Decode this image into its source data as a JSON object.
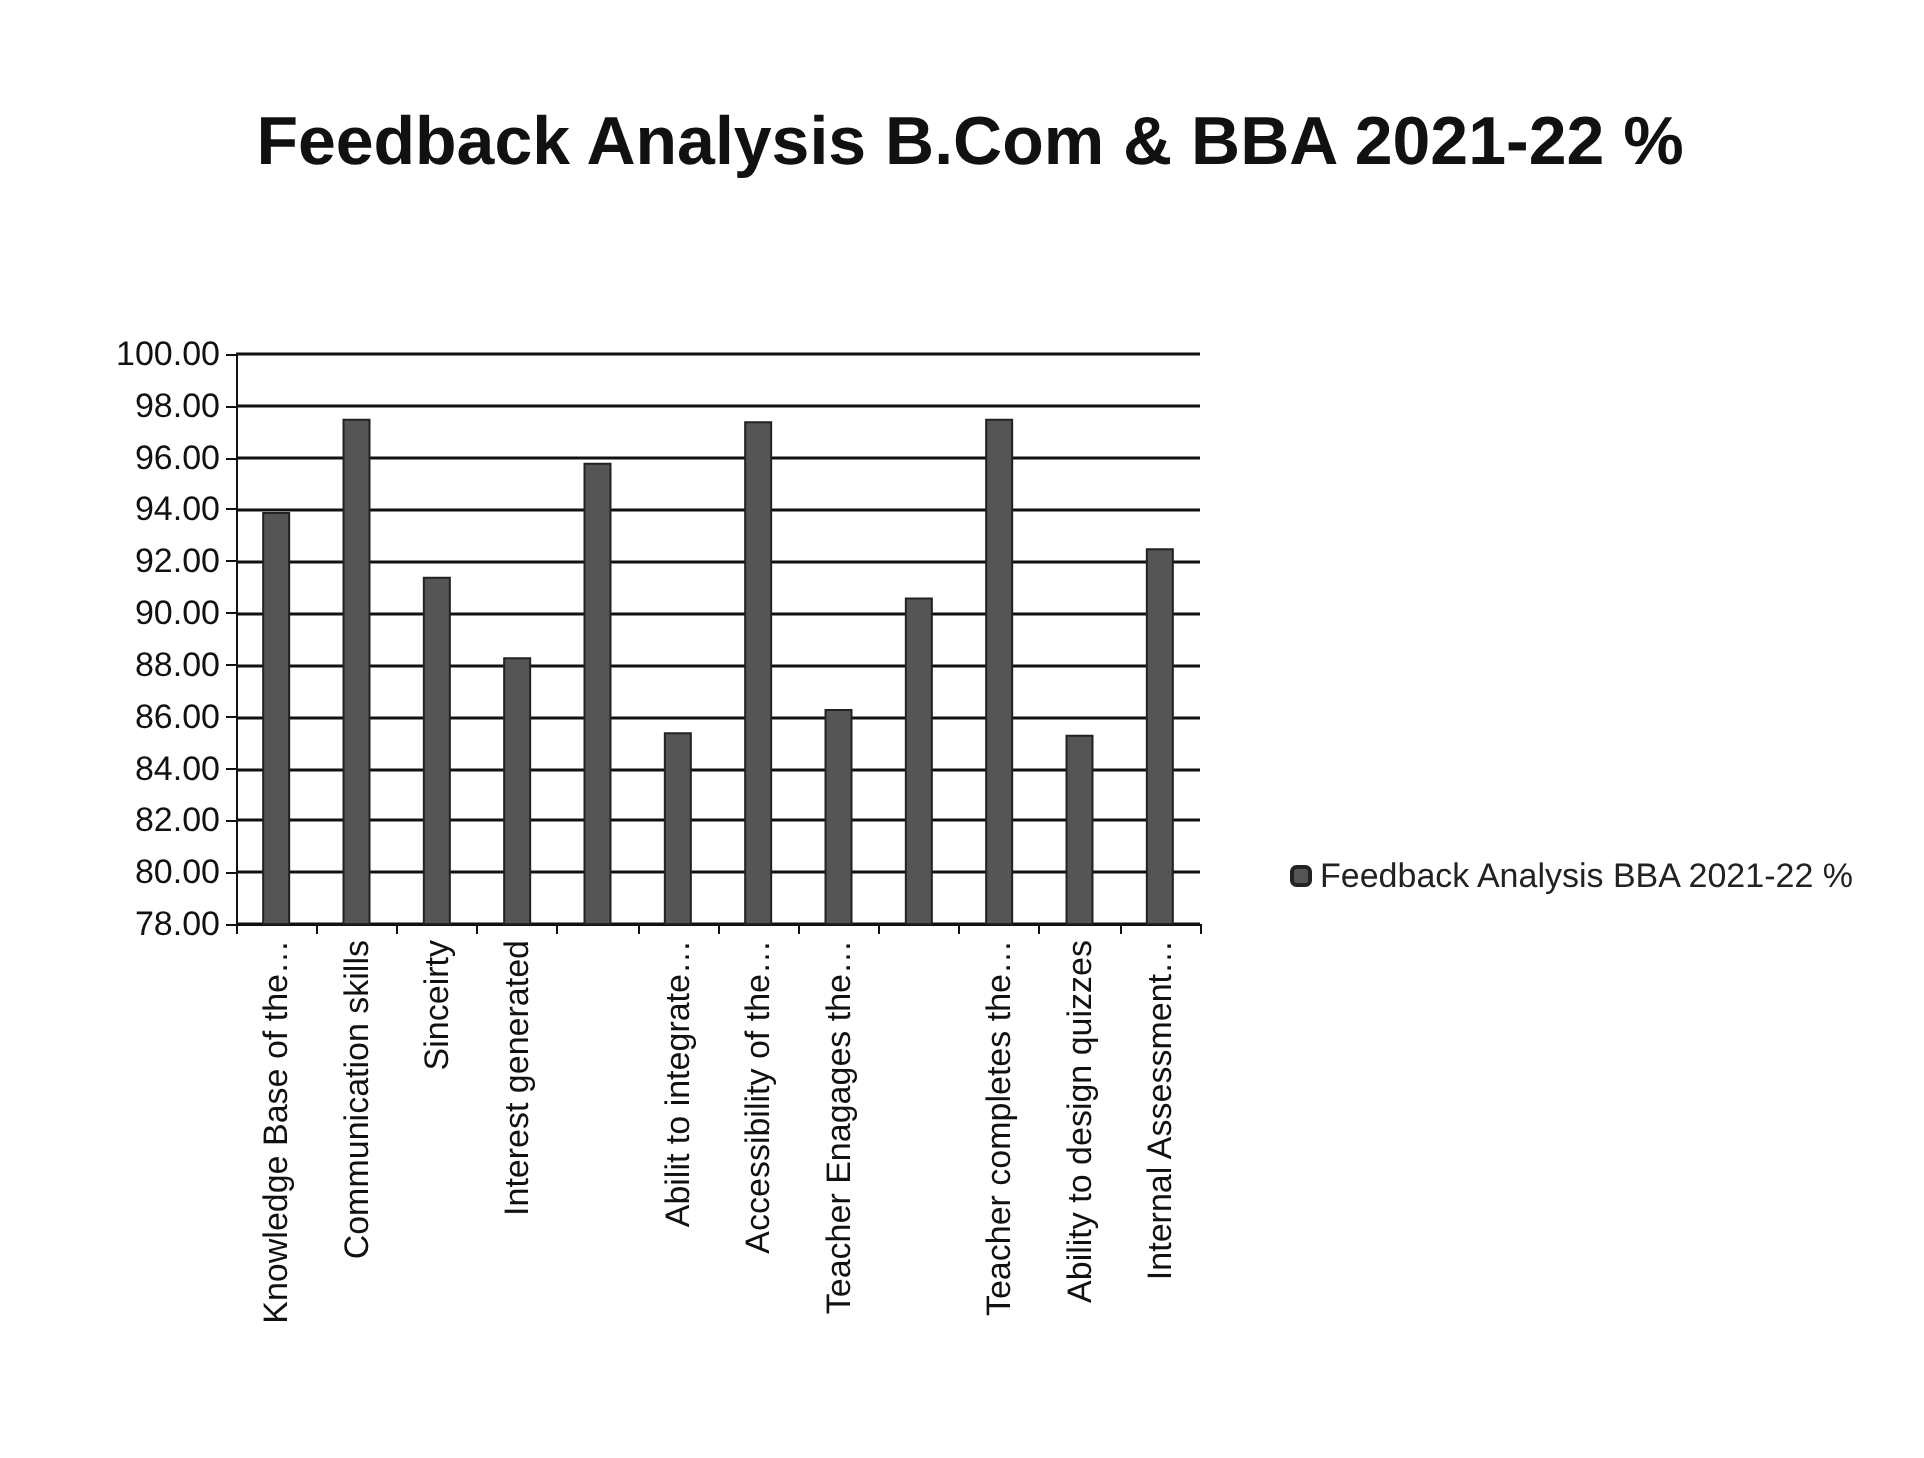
{
  "chart_data": {
    "type": "bar",
    "title": "Feedback Analysis B.Com & BBA 2021-22 %",
    "categories": [
      "Knowledge Base of the…",
      "Communication skills",
      "Sinceirty",
      "Interest generated",
      null,
      "Abilit to integrate…",
      "Accessibility of the…",
      "Teacher Enagages the…",
      null,
      "Teacher completes the…",
      "Ability to design quizzes",
      "Internal Assessment…"
    ],
    "series": [
      {
        "name": "Feedback Analysis BBA 2021-22 %",
        "color": "#555555",
        "values": [
          93.9,
          97.5,
          91.4,
          88.3,
          95.8,
          85.4,
          97.4,
          86.3,
          90.6,
          97.5,
          85.3,
          92.5
        ]
      }
    ],
    "ylim": [
      78,
      100
    ],
    "yticks": [
      {
        "value": 78,
        "label": "78.00"
      },
      {
        "value": 80,
        "label": "80.00"
      },
      {
        "value": 82,
        "label": "82.00"
      },
      {
        "value": 84,
        "label": "84.00"
      },
      {
        "value": 86,
        "label": "86.00"
      },
      {
        "value": 88,
        "label": "88.00"
      },
      {
        "value": 90,
        "label": "90.00"
      },
      {
        "value": 92,
        "label": "92.00"
      },
      {
        "value": 94,
        "label": "94.00"
      },
      {
        "value": 96,
        "label": "96.00"
      },
      {
        "value": 98,
        "label": "98.00"
      },
      {
        "value": 100,
        "label": "100.00"
      }
    ],
    "grid": "y",
    "legend": "right"
  }
}
